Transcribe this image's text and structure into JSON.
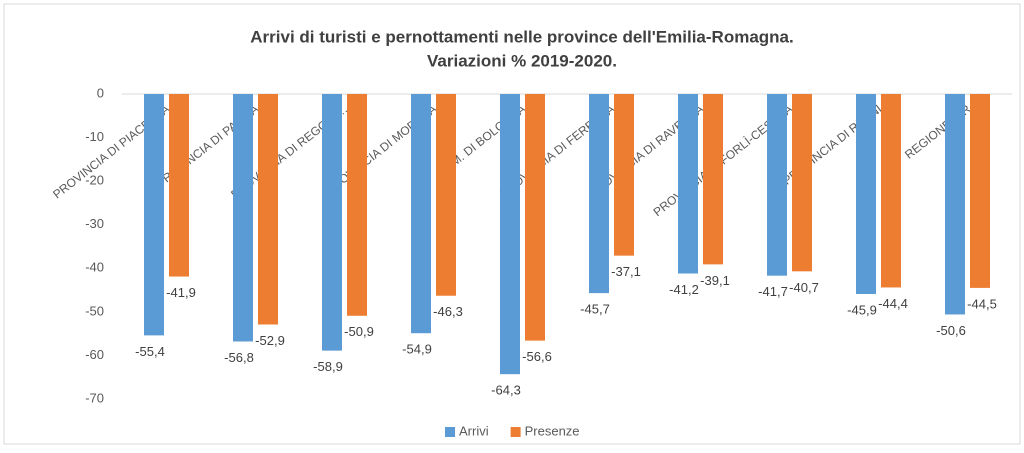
{
  "chart_data": {
    "type": "bar",
    "title": "Arrivi di turisti e pernottamenti nelle province dell'Emilia-Romagna.",
    "subtitle": "Variazioni % 2019-2020.",
    "categories": [
      "PROVINCIA DI PIACENZA",
      "PROVINCIA DI PARMA",
      "PROVINCIA DI REGGIO…",
      "PROVINCIA DI MODENA",
      "C. M. DI BOLOGNA",
      "PROVINCIA DI FERRARA",
      "PROVINCIA DI RAVENNA",
      "PROVINCIA DI FORLÌ-CESENA",
      "PROVINCIA DI RIMINI",
      "REGIONE E-R"
    ],
    "series": [
      {
        "name": "Arrivi",
        "color": "#5b9bd5",
        "values": [
          -55.4,
          -56.8,
          -58.9,
          -54.9,
          -64.3,
          -45.7,
          -41.2,
          -41.7,
          -45.9,
          -50.6
        ],
        "value_labels": [
          "-55,4",
          "-56,8",
          "-58,9",
          "-54,9",
          "-64,3",
          "-45,7",
          "-41,2",
          "-41,7",
          "-45,9",
          "-50,6"
        ]
      },
      {
        "name": "Presenze",
        "color": "#ed7d31",
        "values": [
          -41.9,
          -52.9,
          -50.9,
          -46.3,
          -56.6,
          -37.1,
          -39.1,
          -40.7,
          -44.4,
          -44.5
        ],
        "value_labels": [
          "-41,9",
          "-52,9",
          "-50,9",
          "-46,3",
          "-56,6",
          "-37,1",
          "-39,1",
          "-40,7",
          "-44,4",
          "-44,5"
        ]
      }
    ],
    "ylim": [
      -70,
      0
    ],
    "yticks": [
      0,
      -10,
      -20,
      -30,
      -40,
      -50,
      -60,
      -70
    ],
    "grid": false,
    "legend": "bottom"
  }
}
